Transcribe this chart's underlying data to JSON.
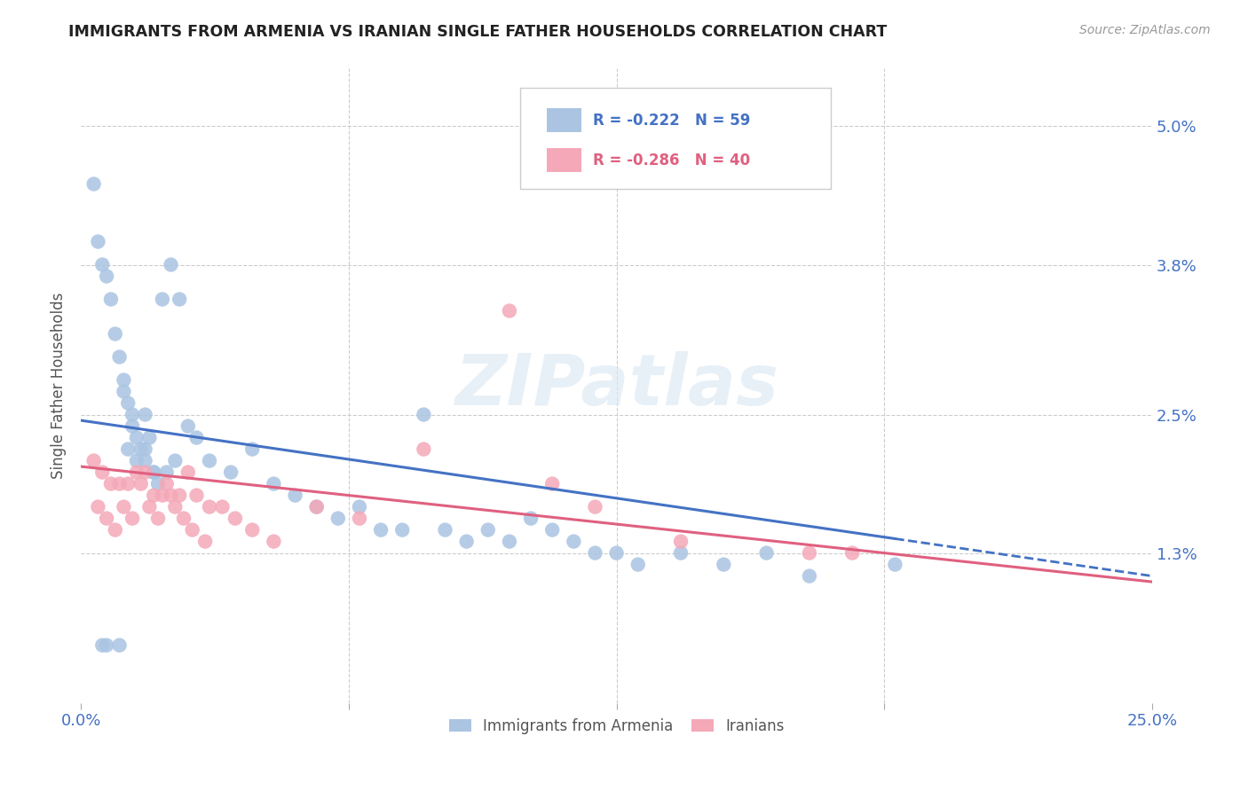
{
  "title": "IMMIGRANTS FROM ARMENIA VS IRANIAN SINGLE FATHER HOUSEHOLDS CORRELATION CHART",
  "source": "Source: ZipAtlas.com",
  "ylabel": "Single Father Households",
  "ytick_labels": [
    "1.3%",
    "2.5%",
    "3.8%",
    "5.0%"
  ],
  "ytick_values": [
    1.3,
    2.5,
    3.8,
    5.0
  ],
  "xlim": [
    0.0,
    25.0
  ],
  "ylim": [
    0.0,
    5.5
  ],
  "legend1_r": "-0.222",
  "legend1_n": "59",
  "legend2_r": "-0.286",
  "legend2_n": "40",
  "color_armenia": "#aac4e2",
  "color_iran": "#f4a8b8",
  "color_line_armenia": "#4472c4",
  "color_line_iran": "#e06080",
  "color_title": "#222222",
  "color_axis_labels": "#4472c4",
  "watermark": "ZIPatlas",
  "arm_line_x0": 0.0,
  "arm_line_y0": 2.45,
  "arm_line_x1": 25.0,
  "arm_line_y1": 1.1,
  "arm_solid_end": 19.0,
  "iran_line_x0": 0.0,
  "iran_line_y0": 2.05,
  "iran_line_x1": 25.0,
  "iran_line_y1": 1.05,
  "armenia_x": [
    0.3,
    0.4,
    0.5,
    0.6,
    0.7,
    0.8,
    0.9,
    1.0,
    1.0,
    1.1,
    1.2,
    1.2,
    1.3,
    1.4,
    1.5,
    1.5,
    1.6,
    1.7,
    1.8,
    1.9,
    2.1,
    2.3,
    2.5,
    2.7,
    3.0,
    3.5,
    4.0,
    4.5,
    5.0,
    5.5,
    6.0,
    6.5,
    7.0,
    7.5,
    8.0,
    8.5,
    9.0,
    9.5,
    10.0,
    10.5,
    11.0,
    11.5,
    12.0,
    12.5,
    13.0,
    14.0,
    15.0,
    16.0,
    17.0,
    19.0,
    0.5,
    0.6,
    0.9,
    1.1,
    1.3,
    1.5,
    1.7,
    2.0,
    2.2
  ],
  "armenia_y": [
    4.5,
    4.0,
    3.8,
    3.7,
    3.5,
    3.2,
    3.0,
    2.8,
    2.7,
    2.6,
    2.5,
    2.4,
    2.3,
    2.2,
    2.5,
    2.1,
    2.3,
    2.0,
    1.9,
    3.5,
    3.8,
    3.5,
    2.4,
    2.3,
    2.1,
    2.0,
    2.2,
    1.9,
    1.8,
    1.7,
    1.6,
    1.7,
    1.5,
    1.5,
    2.5,
    1.5,
    1.4,
    1.5,
    1.4,
    1.6,
    1.5,
    1.4,
    1.3,
    1.3,
    1.2,
    1.3,
    1.2,
    1.3,
    1.1,
    1.2,
    0.5,
    0.5,
    0.5,
    2.2,
    2.1,
    2.2,
    2.0,
    2.0,
    2.1
  ],
  "iran_x": [
    0.3,
    0.5,
    0.7,
    0.9,
    1.1,
    1.3,
    1.5,
    1.7,
    1.9,
    2.1,
    2.3,
    2.5,
    2.7,
    3.0,
    3.3,
    3.6,
    4.0,
    4.5,
    5.5,
    6.5,
    8.0,
    10.0,
    11.0,
    12.0,
    14.0,
    17.0,
    18.0,
    0.4,
    0.6,
    0.8,
    1.0,
    1.2,
    1.4,
    1.6,
    1.8,
    2.0,
    2.2,
    2.4,
    2.6,
    2.9
  ],
  "iran_y": [
    2.1,
    2.0,
    1.9,
    1.9,
    1.9,
    2.0,
    2.0,
    1.8,
    1.8,
    1.8,
    1.8,
    2.0,
    1.8,
    1.7,
    1.7,
    1.6,
    1.5,
    1.4,
    1.7,
    1.6,
    2.2,
    3.4,
    1.9,
    1.7,
    1.4,
    1.3,
    1.3,
    1.7,
    1.6,
    1.5,
    1.7,
    1.6,
    1.9,
    1.7,
    1.6,
    1.9,
    1.7,
    1.6,
    1.5,
    1.4
  ]
}
